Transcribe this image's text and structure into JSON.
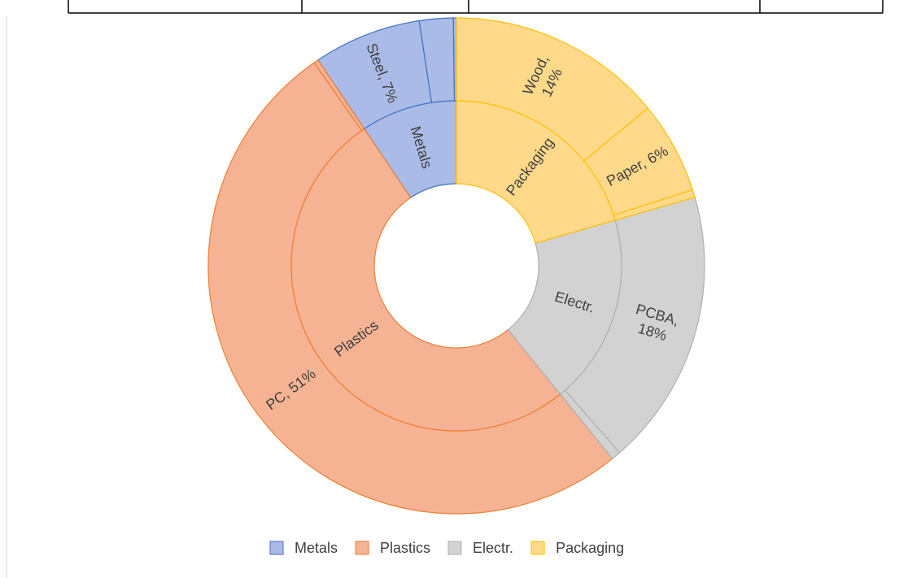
{
  "chart_data": {
    "type": "sunburst",
    "groups": [
      {
        "name": "Metals",
        "color": "#a9bbe6",
        "stroke": "#4472c4",
        "children": [
          {
            "label": null,
            "value": 0.2
          },
          {
            "label": null,
            "value": 2.2
          },
          {
            "label": [
              "Steel, 7%"
            ],
            "value": 7
          }
        ]
      },
      {
        "name": "Plastics",
        "color": "#f6b394",
        "stroke": "#ed7d31",
        "children": [
          {
            "label": null,
            "value": 0.3
          },
          {
            "label": [
              "PC, 51%"
            ],
            "value": 51
          }
        ]
      },
      {
        "name": "Electr.",
        "color": "#d2d2d2",
        "stroke": "#b0b0b0",
        "children": [
          {
            "label": null,
            "value": 0.6
          },
          {
            "label": [
              "PCBA,",
              "18%"
            ],
            "value": 18
          }
        ]
      },
      {
        "name": "Packaging",
        "color": "#ffd98a",
        "stroke": "#ffc000",
        "children": [
          {
            "label": null,
            "value": 0.5
          },
          {
            "label": [
              "Paper, 6%"
            ],
            "value": 6
          },
          {
            "label": [
              "Wood,",
              "14%"
            ],
            "value": 14
          }
        ]
      }
    ]
  }
}
